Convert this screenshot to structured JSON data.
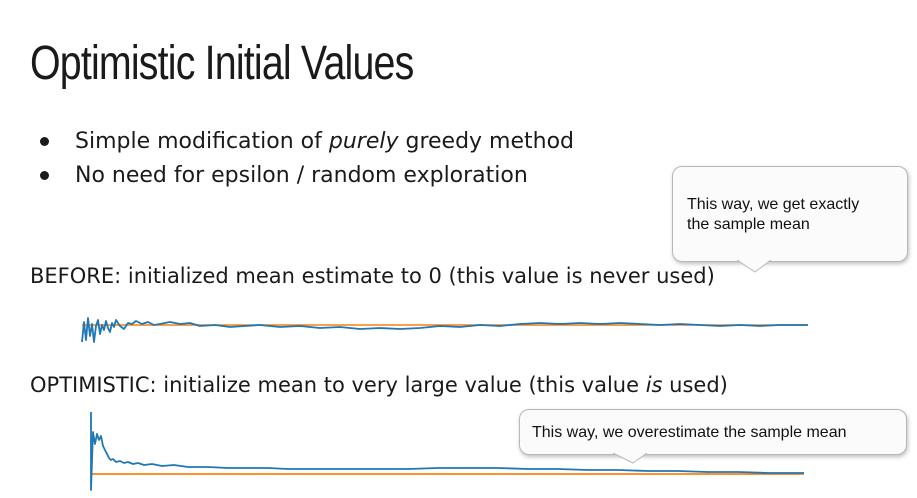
{
  "slide": {
    "title": "Optimistic Initial Values",
    "bullets": [
      {
        "pre": "Simple modification of ",
        "em": "purely",
        "post": " greedy method"
      },
      {
        "pre": "No need for epsilon / random exploration",
        "em": "",
        "post": ""
      }
    ],
    "before_label": "BEFORE: initialized mean estimate to 0 (this value is never used)",
    "optimistic_label": {
      "pre": "OPTIMISTIC: initialize mean to very large value (this value ",
      "em": "is",
      "post": " used)"
    },
    "callout_1": {
      "line1": "This way, we get exactly",
      "line2": "the sample mean"
    },
    "callout_2": "This way, we overestimate the sample mean",
    "colors": {
      "estimate_line": "#1f77b4",
      "true_mean_line": "#ff7f0e"
    }
  }
}
